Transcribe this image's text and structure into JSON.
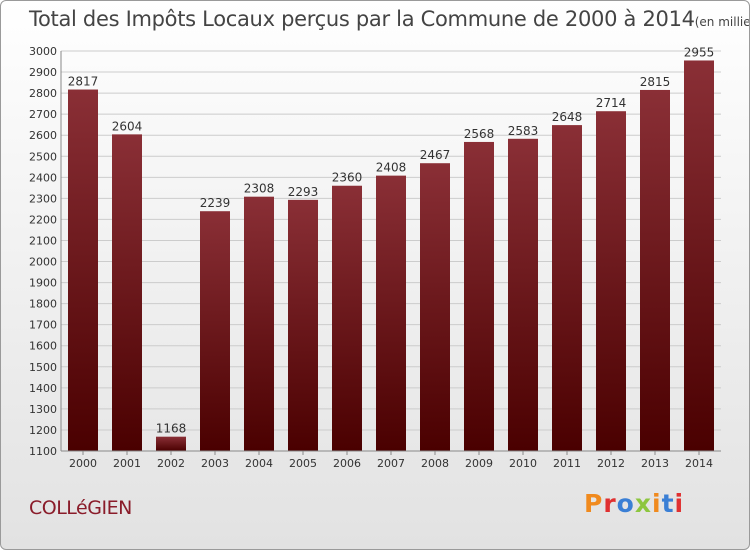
{
  "title": "Total des Impôts Locaux perçus par la Commune de 2000 à 2014",
  "unit_label": "(en milliers d'€)",
  "commune": "COLLéGIEN",
  "logo": {
    "text": "Proxiti",
    "colors": [
      "#f08a1e",
      "#e03030",
      "#3a7fd5",
      "#8dc63f",
      "#f08a1e",
      "#3a7fd5",
      "#e03030"
    ]
  },
  "colors": {
    "bar_top": "#8a2f36",
    "bar_bottom": "#4a0000",
    "grid": "#cccccc",
    "commune": "#8a1c2a"
  },
  "chart_data": {
    "type": "bar",
    "categories": [
      "2000",
      "2001",
      "2002",
      "2003",
      "2004",
      "2005",
      "2006",
      "2007",
      "2008",
      "2009",
      "2010",
      "2011",
      "2012",
      "2013",
      "2014"
    ],
    "values": [
      2817,
      2604,
      1168,
      2239,
      2308,
      2293,
      2360,
      2408,
      2467,
      2568,
      2583,
      2648,
      2714,
      2815,
      2955
    ],
    "ylim": [
      1100,
      3000
    ],
    "yticks": [
      1100,
      1200,
      1300,
      1400,
      1500,
      1600,
      1700,
      1800,
      1900,
      2000,
      2100,
      2200,
      2300,
      2400,
      2500,
      2600,
      2700,
      2800,
      2900,
      3000
    ],
    "grid": true,
    "data_labels": true
  }
}
